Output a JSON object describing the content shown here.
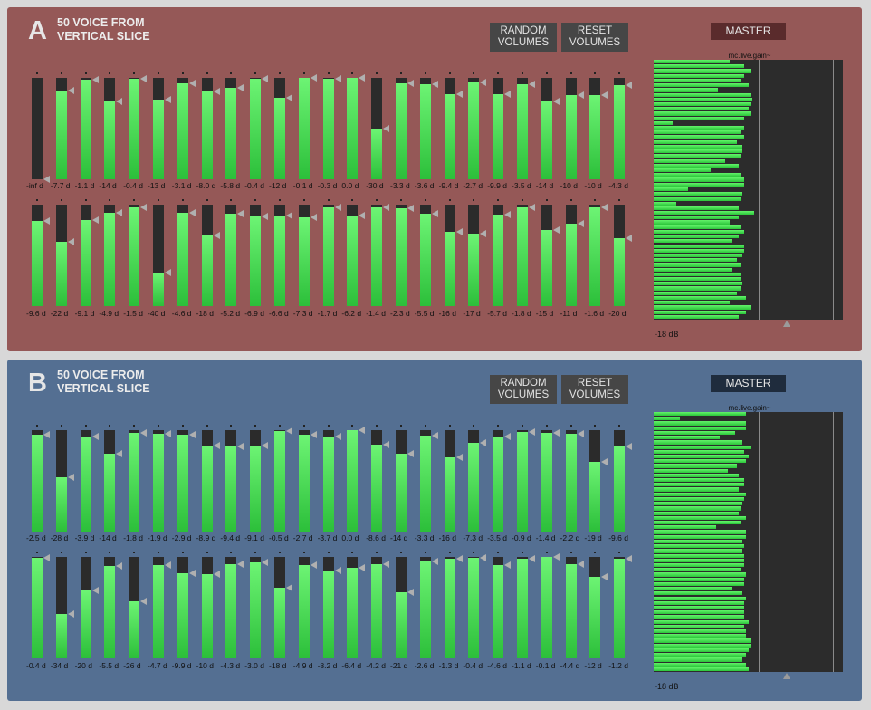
{
  "panels": [
    {
      "letter": "A",
      "title": "50 VOICE FROM\nVERTICAL SLICE",
      "random_label": "RANDOM\nVOLUMES",
      "reset_label": "RESET\nVOLUMES",
      "master_label": "MASTER",
      "gain_object": "mc.live.gain~",
      "db_readout": "-18 dB",
      "row1": [
        "-inf d",
        "-7.7 d",
        "-1.1 d",
        "-14 d",
        "-0.4 d",
        "-13 d",
        "-3.1 d",
        "-8.0 d",
        "-5.8 d",
        "-0.4 d",
        "-12 d",
        "-0.1 d",
        "-0.3 d",
        "0.0 d",
        "-30 d",
        "-3.3 d",
        "-3.6 d",
        "-9.4 d",
        "-2.7 d",
        "-9.9 d",
        "-3.5 d",
        "-14 d",
        "-10 d",
        "-10 d",
        "-4.3 d"
      ],
      "row2": [
        "-9.6 d",
        "-22 d",
        "-9.1 d",
        "-4.9 d",
        "-1.5 d",
        "-40 d",
        "-4.6 d",
        "-18 d",
        "-5.2 d",
        "-6.9 d",
        "-6.6 d",
        "-7.3 d",
        "-1.7 d",
        "-6.2 d",
        "-1.4 d",
        "-2.3 d",
        "-5.5 d",
        "-16 d",
        "-17 d",
        "-5.7 d",
        "-1.8 d",
        "-15 d",
        "-11 d",
        "-1.6 d",
        "-20 d"
      ],
      "meter_levels": [
        0.4,
        0.48,
        0.51,
        0.48,
        0.46,
        0.5,
        0.34,
        0.51,
        0.52,
        0.51,
        0.5,
        0.51,
        0.48,
        0.1,
        0.48,
        0.46,
        0.48,
        0.44,
        0.47,
        0.47,
        0.46,
        0.38,
        0.45,
        0.3,
        0.46,
        0.48,
        0.48,
        0.18,
        0.47,
        0.46,
        0.12,
        0.45,
        0.53,
        0.45,
        0.4,
        0.46,
        0.48,
        0.45,
        0.41,
        0.48,
        0.48,
        0.47,
        0.44,
        0.46,
        0.41,
        0.46,
        0.46,
        0.47,
        0.46,
        0.44,
        0.49,
        0.4,
        0.51,
        0.49,
        0.45
      ]
    },
    {
      "letter": "B",
      "title": "50 VOICE FROM\nVERTICAL SLICE",
      "random_label": "RANDOM\nVOLUMES",
      "reset_label": "RESET\nVOLUMES",
      "master_label": "MASTER",
      "gain_object": "mc.live.gain~",
      "db_readout": "-18 dB",
      "row1": [
        "-2.5 d",
        "-28 d",
        "-3.9 d",
        "-14 d",
        "-1.8 d",
        "-1.9 d",
        "-2.9 d",
        "-8.9 d",
        "-9.4 d",
        "-9.1 d",
        "-0.5 d",
        "-2.7 d",
        "-3.7 d",
        "0.0 d",
        "-8.6 d",
        "-14 d",
        "-3.3 d",
        "-16 d",
        "-7.3 d",
        "-3.5 d",
        "-0.9 d",
        "-1.4 d",
        "-2.2 d",
        "-19 d",
        "-9.6 d"
      ],
      "row2": [
        "-0.4 d",
        "-34 d",
        "-20 d",
        "-5.5 d",
        "-26 d",
        "-4.7 d",
        "-9.9 d",
        "-10 d",
        "-4.3 d",
        "-3.0 d",
        "-18 d",
        "-4.9 d",
        "-8.2 d",
        "-6.4 d",
        "-4.2 d",
        "-21 d",
        "-2.6 d",
        "-1.3 d",
        "-0.4 d",
        "-4.6 d",
        "-1.1 d",
        "-0.1 d",
        "-4.4 d",
        "-12 d",
        "-1.2 d"
      ],
      "meter_levels": [
        0.49,
        0.14,
        0.49,
        0.49,
        0.43,
        0.35,
        0.47,
        0.51,
        0.48,
        0.5,
        0.49,
        0.44,
        0.39,
        0.45,
        0.48,
        0.48,
        0.45,
        0.49,
        0.48,
        0.47,
        0.46,
        0.45,
        0.49,
        0.46,
        0.33,
        0.49,
        0.49,
        0.47,
        0.48,
        0.47,
        0.48,
        0.48,
        0.48,
        0.46,
        0.49,
        0.48,
        0.48,
        0.41,
        0.47,
        0.49,
        0.48,
        0.48,
        0.48,
        0.48,
        0.5,
        0.48,
        0.49,
        0.49,
        0.51,
        0.51,
        0.5,
        0.49,
        0.47,
        0.49,
        0.5
      ]
    }
  ],
  "colors": {
    "panel_a": "#955857",
    "panel_b": "#546f92",
    "meter_green": "#4be158",
    "slider_track": "#2b2b2b"
  }
}
